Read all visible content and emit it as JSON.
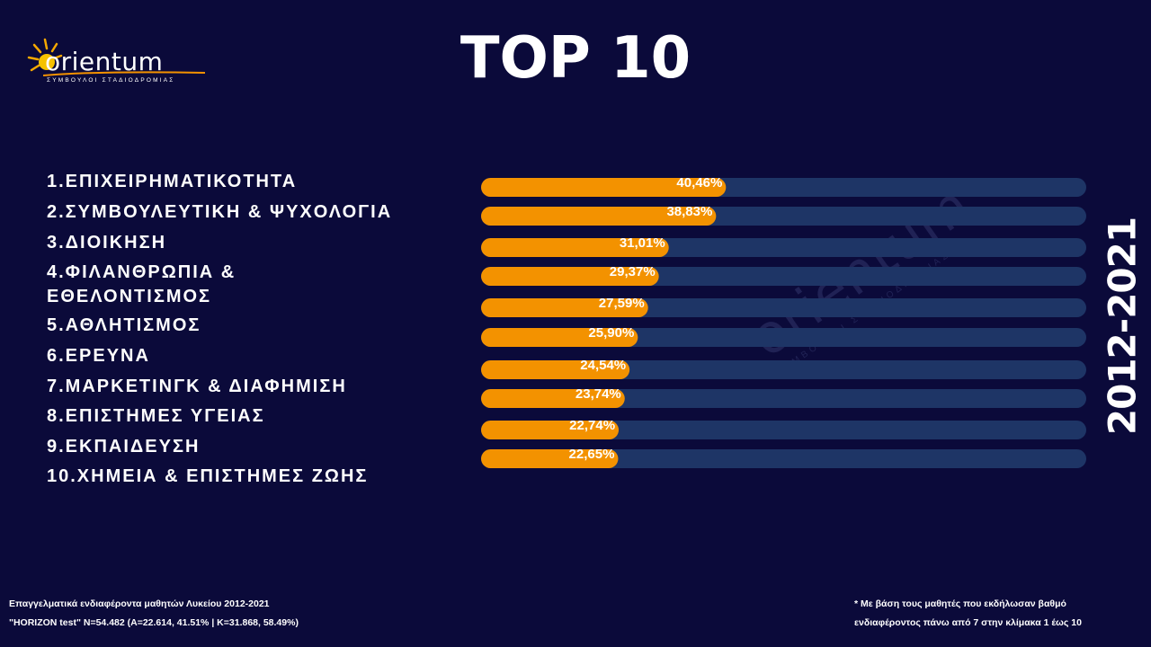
{
  "logo": {
    "name": "orientum",
    "tagline": "ΣΥΜΒΟΥΛΟΙ ΣΤΑΔΙΟΔΡΟΜΙΑΣ"
  },
  "title": "TOP 10",
  "year_label": "2012-2021",
  "watermark": {
    "name": "orientum",
    "tagline": "ΣΥΜΒΟΥΛΟΙ ΣΤΑΔΙΟΔΡΟΜΙΑΣ"
  },
  "colors": {
    "background": "#0b0a3a",
    "bar_fill": "#f39200",
    "bar_track": "#1e3566",
    "text": "#ffffff"
  },
  "chart_data": {
    "type": "bar",
    "orientation": "horizontal",
    "categories": [
      "1.ΕΠΙΧΕΙΡΗΜΑΤΙΚΟΤΗΤΑ",
      "2.ΣΥΜΒΟΥΛΕΥΤΙΚΗ & ΨΥΧΟΛΟΓΙΑ",
      "3.ΔΙΟΙΚΗΣΗ",
      "4.ΦΙΛΑΝΘΡΩΠΙΑ & ΕΘΕΛΟΝΤΙΣΜΟΣ",
      "5.ΑΘΛΗΤΙΣΜΟΣ",
      "6.ΕΡΕΥΝΑ",
      "7.ΜΑΡΚΕΤΙΝΓΚ & ΔΙΑΦΗΜΙΣΗ",
      "8.ΕΠΙΣΤΗΜΕΣ ΥΓΕΙΑΣ",
      "9.ΕΚΠΑΙΔΕΥΣΗ",
      "10.ΧΗΜΕΙΑ & ΕΠΙΣΤΗΜΕΣ ΖΩΗΣ"
    ],
    "values": [
      40.46,
      38.83,
      31.01,
      29.37,
      27.59,
      25.9,
      24.54,
      23.74,
      22.74,
      22.65
    ],
    "value_labels": [
      "40,46%",
      "38,83%",
      "31,01%",
      "29,37%",
      "27,59%",
      "25,90%",
      "24,54%",
      "23,74%",
      "22,74%",
      "22,65%"
    ],
    "xlim": [
      0,
      100
    ],
    "unit": "%"
  },
  "footer": {
    "left_line1": "Επαγγελματικά ενδιαφέροντα μαθητών Λυκείου 2012-2021",
    "left_line2": "\"HORIZON test\"  N=54.482 (A=22.614, 41.51% | K=31.868, 58.49%)",
    "right_line1": "* Με βάση τους μαθητές που εκδήλωσαν βαθμό",
    "right_line2": "ενδιαφέροντος πάνω από 7 στην κλίμακα 1 έως 10"
  }
}
